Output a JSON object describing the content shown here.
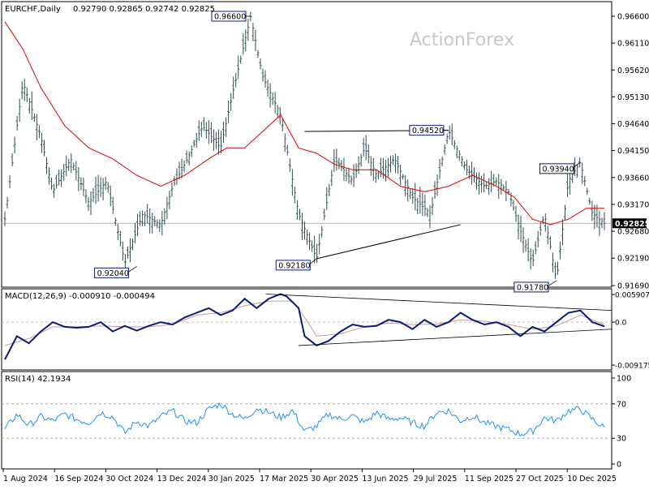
{
  "header": {
    "symbol_text": "EURCHF,Daily",
    "ohlc_text": "0.92790 0.92865 0.92742 0.92825"
  },
  "watermark": "ActionForex",
  "colors": {
    "price": "#2f4f4f",
    "ma": "#e00000",
    "macd": "#0a1a7a",
    "signal": "#c89a9a",
    "rsi": "#1e90ff",
    "axis": "#000000",
    "label_border": "#0a1a7a"
  },
  "chart_data": [
    {
      "type": "line",
      "panel": "price",
      "title": "EURCHF,Daily",
      "ylim": [
        0.9169,
        0.966
      ],
      "y_ticks": [
        "0.96600",
        "0.96110",
        "0.95620",
        "0.95130",
        "0.94640",
        "0.94150",
        "0.93660",
        "0.93170",
        "0.92680",
        "0.92190",
        "0.91690"
      ],
      "x_ticks": [
        "1 Aug 2024",
        "16 Sep 2024",
        "30 Oct 2024",
        "13 Dec 2024",
        "30 Jan 2025",
        "17 Mar 2025",
        "30 Apr 2025",
        "13 Jun 2025",
        "29 Jul 2025",
        "11 Sep 2025",
        "27 Oct 2025",
        "10 Dec 2025"
      ],
      "current_price": "0.92825",
      "series": [
        {
          "role": "price",
          "x": [
            0,
            3,
            6,
            8,
            11,
            14,
            17,
            20,
            23,
            26,
            28,
            30,
            33,
            36,
            38,
            41,
            43,
            46,
            49,
            52,
            55,
            58,
            60,
            62,
            65,
            68,
            71,
            74,
            77,
            80,
            82,
            84,
            86,
            88,
            90,
            92,
            94,
            96,
            98,
            100
          ],
          "values": [
            0.929,
            0.954,
            0.944,
            0.934,
            0.94,
            0.932,
            0.936,
            0.921,
            0.93,
            0.928,
            0.935,
            0.939,
            0.946,
            0.942,
            0.952,
            0.966,
            0.955,
            0.948,
            0.93,
            0.9218,
            0.94,
            0.936,
            0.942,
            0.937,
            0.94,
            0.933,
            0.93,
            0.9452,
            0.938,
            0.935,
            0.936,
            0.934,
            0.927,
            0.921,
            0.93,
            0.9178,
            0.936,
            0.9394,
            0.93,
            0.92825
          ]
        },
        {
          "role": "moving-average",
          "x": [
            0,
            3,
            6,
            10,
            14,
            18,
            22,
            26,
            30,
            34,
            37,
            40,
            43,
            46,
            49,
            52,
            55,
            58,
            62,
            66,
            70,
            74,
            78,
            82,
            85,
            88,
            91,
            94,
            97,
            100
          ],
          "values": [
            0.965,
            0.96,
            0.953,
            0.946,
            0.942,
            0.94,
            0.937,
            0.935,
            0.937,
            0.94,
            0.942,
            0.942,
            0.945,
            0.948,
            0.942,
            0.941,
            0.939,
            0.938,
            0.938,
            0.935,
            0.934,
            0.935,
            0.937,
            0.935,
            0.933,
            0.929,
            0.928,
            0.929,
            0.931,
            0.931
          ]
        }
      ],
      "annotations": [
        {
          "text": "0.96600",
          "x": 41,
          "y": 0.966
        },
        {
          "text": "0.92040",
          "x": 22,
          "y": 0.9204
        },
        {
          "text": "0.92180",
          "x": 52,
          "y": 0.9218
        },
        {
          "text": "0.94520",
          "x": 74,
          "y": 0.9452
        },
        {
          "text": "0.93940",
          "x": 96,
          "y": 0.9394
        },
        {
          "text": "0.91780",
          "x": 92,
          "y": 0.9178
        }
      ]
    },
    {
      "type": "line",
      "panel": "macd",
      "title": "MACD(12,26,9) -0.000910 -0.000494",
      "ylim": [
        -0.00917,
        0.005907
      ],
      "y_ticks": [
        "0.005907",
        "0.0",
        "-0.009175"
      ],
      "series": [
        {
          "role": "macd",
          "x": [
            0,
            2,
            4,
            6,
            8,
            10,
            12,
            14,
            16,
            18,
            20,
            22,
            24,
            26,
            28,
            30,
            32,
            34,
            36,
            38,
            40,
            42,
            44,
            46,
            47,
            49,
            50,
            52,
            54,
            56,
            58,
            60,
            62,
            64,
            66,
            68,
            70,
            72,
            74,
            76,
            78,
            80,
            82,
            84,
            86,
            88,
            90,
            92,
            94,
            96,
            98,
            100
          ],
          "values": [
            -0.008,
            -0.003,
            -0.0045,
            -0.002,
            0.0,
            -0.001,
            -0.0012,
            -0.001,
            0.0,
            -0.002,
            -0.0008,
            -0.0018,
            -0.0008,
            0.0,
            -0.0005,
            0.001,
            0.002,
            0.003,
            0.0015,
            0.0025,
            0.005,
            0.003,
            0.005,
            0.006,
            0.0055,
            0.003,
            -0.003,
            -0.005,
            -0.004,
            -0.002,
            -0.0005,
            -0.001,
            -0.0008,
            0.0005,
            0.0,
            -0.0015,
            0.0005,
            -0.001,
            0.0,
            0.002,
            0.0005,
            -0.0005,
            0.0,
            -0.001,
            -0.003,
            -0.001,
            -0.002,
            0.0,
            0.002,
            0.0025,
            0.0,
            -0.0009
          ]
        },
        {
          "role": "signal",
          "x": [
            0,
            4,
            8,
            12,
            16,
            20,
            24,
            28,
            32,
            36,
            40,
            44,
            48,
            50,
            52,
            56,
            60,
            64,
            68,
            72,
            76,
            80,
            84,
            88,
            92,
            96,
            100
          ],
          "values": [
            -0.005,
            -0.0035,
            -0.001,
            -0.001,
            -0.0008,
            -0.001,
            -0.001,
            -0.0005,
            0.0015,
            0.002,
            0.0035,
            0.0045,
            0.0045,
            0.001,
            -0.003,
            -0.0025,
            -0.001,
            -0.0002,
            -0.0005,
            -0.0004,
            0.0005,
            0.0002,
            -0.0005,
            -0.0015,
            -0.0008,
            0.0015,
            -0.0005
          ]
        }
      ]
    },
    {
      "type": "line",
      "panel": "rsi",
      "title": "RSI(14) 42.1934",
      "ylim": [
        0,
        100
      ],
      "y_ticks": [
        "100",
        "70",
        "30",
        "0"
      ],
      "levels": [
        70,
        30
      ],
      "series": [
        {
          "role": "rsi",
          "x": [
            0,
            2,
            4,
            6,
            8,
            10,
            12,
            14,
            16,
            18,
            20,
            22,
            24,
            26,
            28,
            30,
            32,
            34,
            36,
            38,
            40,
            42,
            44,
            46,
            48,
            50,
            52,
            54,
            56,
            58,
            60,
            62,
            64,
            66,
            68,
            70,
            72,
            74,
            76,
            78,
            80,
            82,
            84,
            86,
            88,
            90,
            92,
            94,
            96,
            98,
            100
          ],
          "values": [
            40,
            58,
            45,
            55,
            50,
            58,
            52,
            48,
            60,
            55,
            36,
            50,
            44,
            55,
            62,
            50,
            48,
            64,
            70,
            58,
            52,
            65,
            60,
            54,
            62,
            38,
            44,
            58,
            52,
            56,
            48,
            60,
            52,
            54,
            48,
            44,
            60,
            62,
            50,
            56,
            48,
            44,
            40,
            35,
            38,
            54,
            50,
            62,
            64,
            52,
            42
          ]
        }
      ]
    }
  ]
}
